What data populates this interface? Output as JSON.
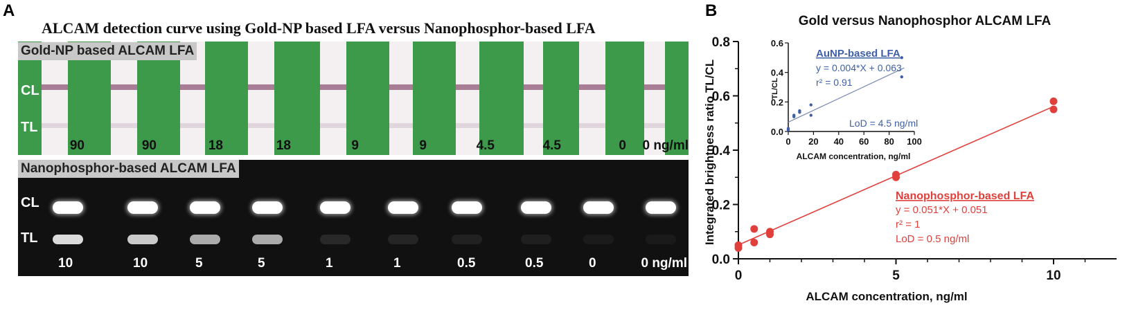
{
  "panel_a": {
    "letter": "A",
    "title": "ALCAM detection curve using Gold-NP based LFA versus Nanophosphor-based LFA",
    "gold": {
      "header": "Gold-NP based ALCAM LFA",
      "cl_label": "CL",
      "tl_label": "TL",
      "concentrations": [
        "90",
        "90",
        "18",
        "18",
        "9",
        "9",
        "4.5",
        "4.5",
        "0",
        "0 ng/ml"
      ],
      "colors": {
        "strip_green": "#3c9a4a",
        "band": "#9a6a86",
        "membrane": "#f4f0f2"
      }
    },
    "nano": {
      "header": "Nanophosphor-based ALCAM LFA",
      "cl_label": "CL",
      "tl_label": "TL",
      "concentrations": [
        "10",
        "10",
        "5",
        "5",
        "1",
        "1",
        "0.5",
        "0.5",
        "0",
        "0 ng/ml"
      ],
      "tl_intensity": [
        0.9,
        0.85,
        0.75,
        0.75,
        0.15,
        0.12,
        0.08,
        0.06,
        0.03,
        0.02
      ]
    }
  },
  "panel_b": {
    "letter": "B",
    "chart_data": [
      {
        "type": "scatter",
        "title": "Gold versus Nanophosphor ALCAM LFA",
        "xlabel": "ALCAM concentration, ng/ml",
        "ylabel": "Integrated brightness ratio TL/CL",
        "xlim": [
          0,
          12
        ],
        "ylim": [
          0,
          0.8
        ],
        "xticks": [
          "0",
          "5",
          "10"
        ],
        "yticks": [
          "0.0",
          "0.2",
          "0.4",
          "0.6",
          "0.8"
        ],
        "series": [
          {
            "name": "Nanophosphor-based LFA",
            "color": "#e0403c",
            "points": [
              [
                0,
                0.04
              ],
              [
                0,
                0.05
              ],
              [
                0.5,
                0.06
              ],
              [
                0.5,
                0.11
              ],
              [
                1,
                0.09
              ],
              [
                1,
                0.1
              ],
              [
                5,
                0.3
              ],
              [
                5,
                0.31
              ],
              [
                10,
                0.55
              ],
              [
                10,
                0.58
              ]
            ],
            "fit": {
              "slope": 0.051,
              "intercept": 0.051
            }
          }
        ],
        "annotation": {
          "name": "Nanophosphor-based LFA",
          "equation": "y = 0.051*X + 0.051",
          "r2": "r² = 1",
          "lod": "LoD = 0.5 ng/ml"
        }
      },
      {
        "type": "scatter",
        "xlabel": "ALCAM concentration,  ng/ml",
        "ylabel": "TL/CL",
        "xlim": [
          0,
          100
        ],
        "ylim": [
          0,
          0.6
        ],
        "xticks": [
          "0",
          "20",
          "40",
          "60",
          "80",
          "100"
        ],
        "yticks": [
          "0.0",
          "0.2",
          "0.4",
          "0.6"
        ],
        "series": [
          {
            "name": "AuNP-based LFA",
            "color": "#3e5fa8",
            "points": [
              [
                0,
                0.02
              ],
              [
                0,
                0.01
              ],
              [
                4.5,
                0.1
              ],
              [
                4.5,
                0.11
              ],
              [
                9,
                0.13
              ],
              [
                9,
                0.14
              ],
              [
                18,
                0.11
              ],
              [
                18,
                0.18
              ],
              [
                90,
                0.5
              ],
              [
                90,
                0.37
              ]
            ],
            "fit": {
              "slope": 0.004,
              "intercept": 0.063
            }
          }
        ],
        "annotation": {
          "name": "AuNP-based LFA",
          "equation": "y = 0.004*X + 0.063",
          "r2": "r² = 0.91",
          "lod": "LoD = 4.5 ng/ml"
        }
      }
    ]
  }
}
